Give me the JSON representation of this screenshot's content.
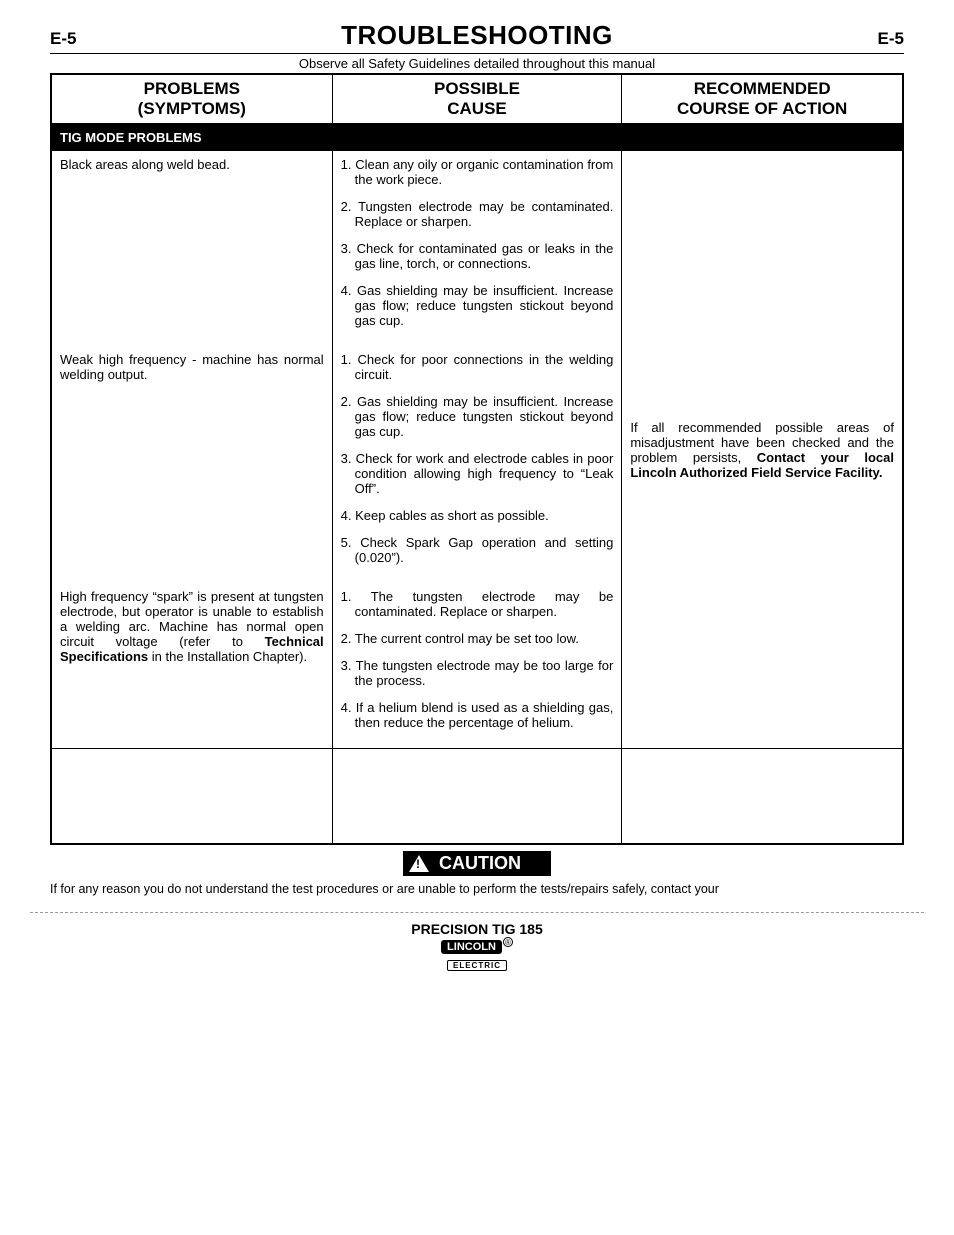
{
  "page": {
    "left": "E-5",
    "right": "E-5",
    "title": "TROUBLESHOOTING"
  },
  "safety": "Observe all Safety Guidelines detailed throughout this manual",
  "table": {
    "headers": {
      "problems_l1": "PROBLEMS",
      "problems_l2": "(SYMPTOMS)",
      "cause_l1": "POSSIBLE",
      "cause_l2": "CAUSE",
      "action_l1": "RECOMMENDED",
      "action_l2": "COURSE OF ACTION"
    },
    "section": "TIG MODE PROBLEMS",
    "rows": [
      {
        "problem": "Black areas along weld bead.",
        "causes": [
          "1. Clean any oily or organic contamination from the work piece.",
          "2. Tungsten electrode may be contaminated. Replace or sharpen.",
          "3. Check for contaminated gas or leaks in the gas line, torch, or connections.",
          "4. Gas shielding may be insufficient. Increase gas flow; reduce tungsten stickout beyond gas cup."
        ]
      },
      {
        "problem": "Weak high frequency - machine has normal welding output.",
        "causes": [
          "1. Check for poor connections in the welding circuit.",
          "2. Gas shielding may be insufficient. Increase gas flow; reduce tungsten stickout beyond gas cup.",
          "3. Check for work and electrode cables in poor condition allowing high frequency to “Leak Off”.",
          "4. Keep cables as short as possible.",
          "5. Check Spark Gap operation and setting (0.020”)."
        ]
      },
      {
        "problem_html": "High frequency “spark” is present at tungsten electrode, but operator is unable to establish a welding arc. Machine has normal open circuit voltage (refer to <b>Technical Specifications</b> in the Installation Chapter).",
        "causes": [
          "1. The tungsten electrode may be contaminated. Replace or sharpen.",
          "2. The current control may be set too low.",
          "3. The tungsten electrode may be too large for the process.",
          "4. If a helium blend is used as a shielding gas, then reduce the percentage of helium."
        ]
      }
    ],
    "action_html": "If all recommended possible areas of misadjustment have been checked and the problem persists, <b>Contact your local Lincoln Authorized Field Service Facility.</b>"
  },
  "caution": {
    "label": "CAUTION",
    "text": "If for any reason you do not understand the test procedures or are unable to perform the tests/repairs safely, contact your"
  },
  "footer": {
    "model": "PRECISION TIG 185",
    "brand": "LINCOLN",
    "sub": "ELECTRIC"
  }
}
